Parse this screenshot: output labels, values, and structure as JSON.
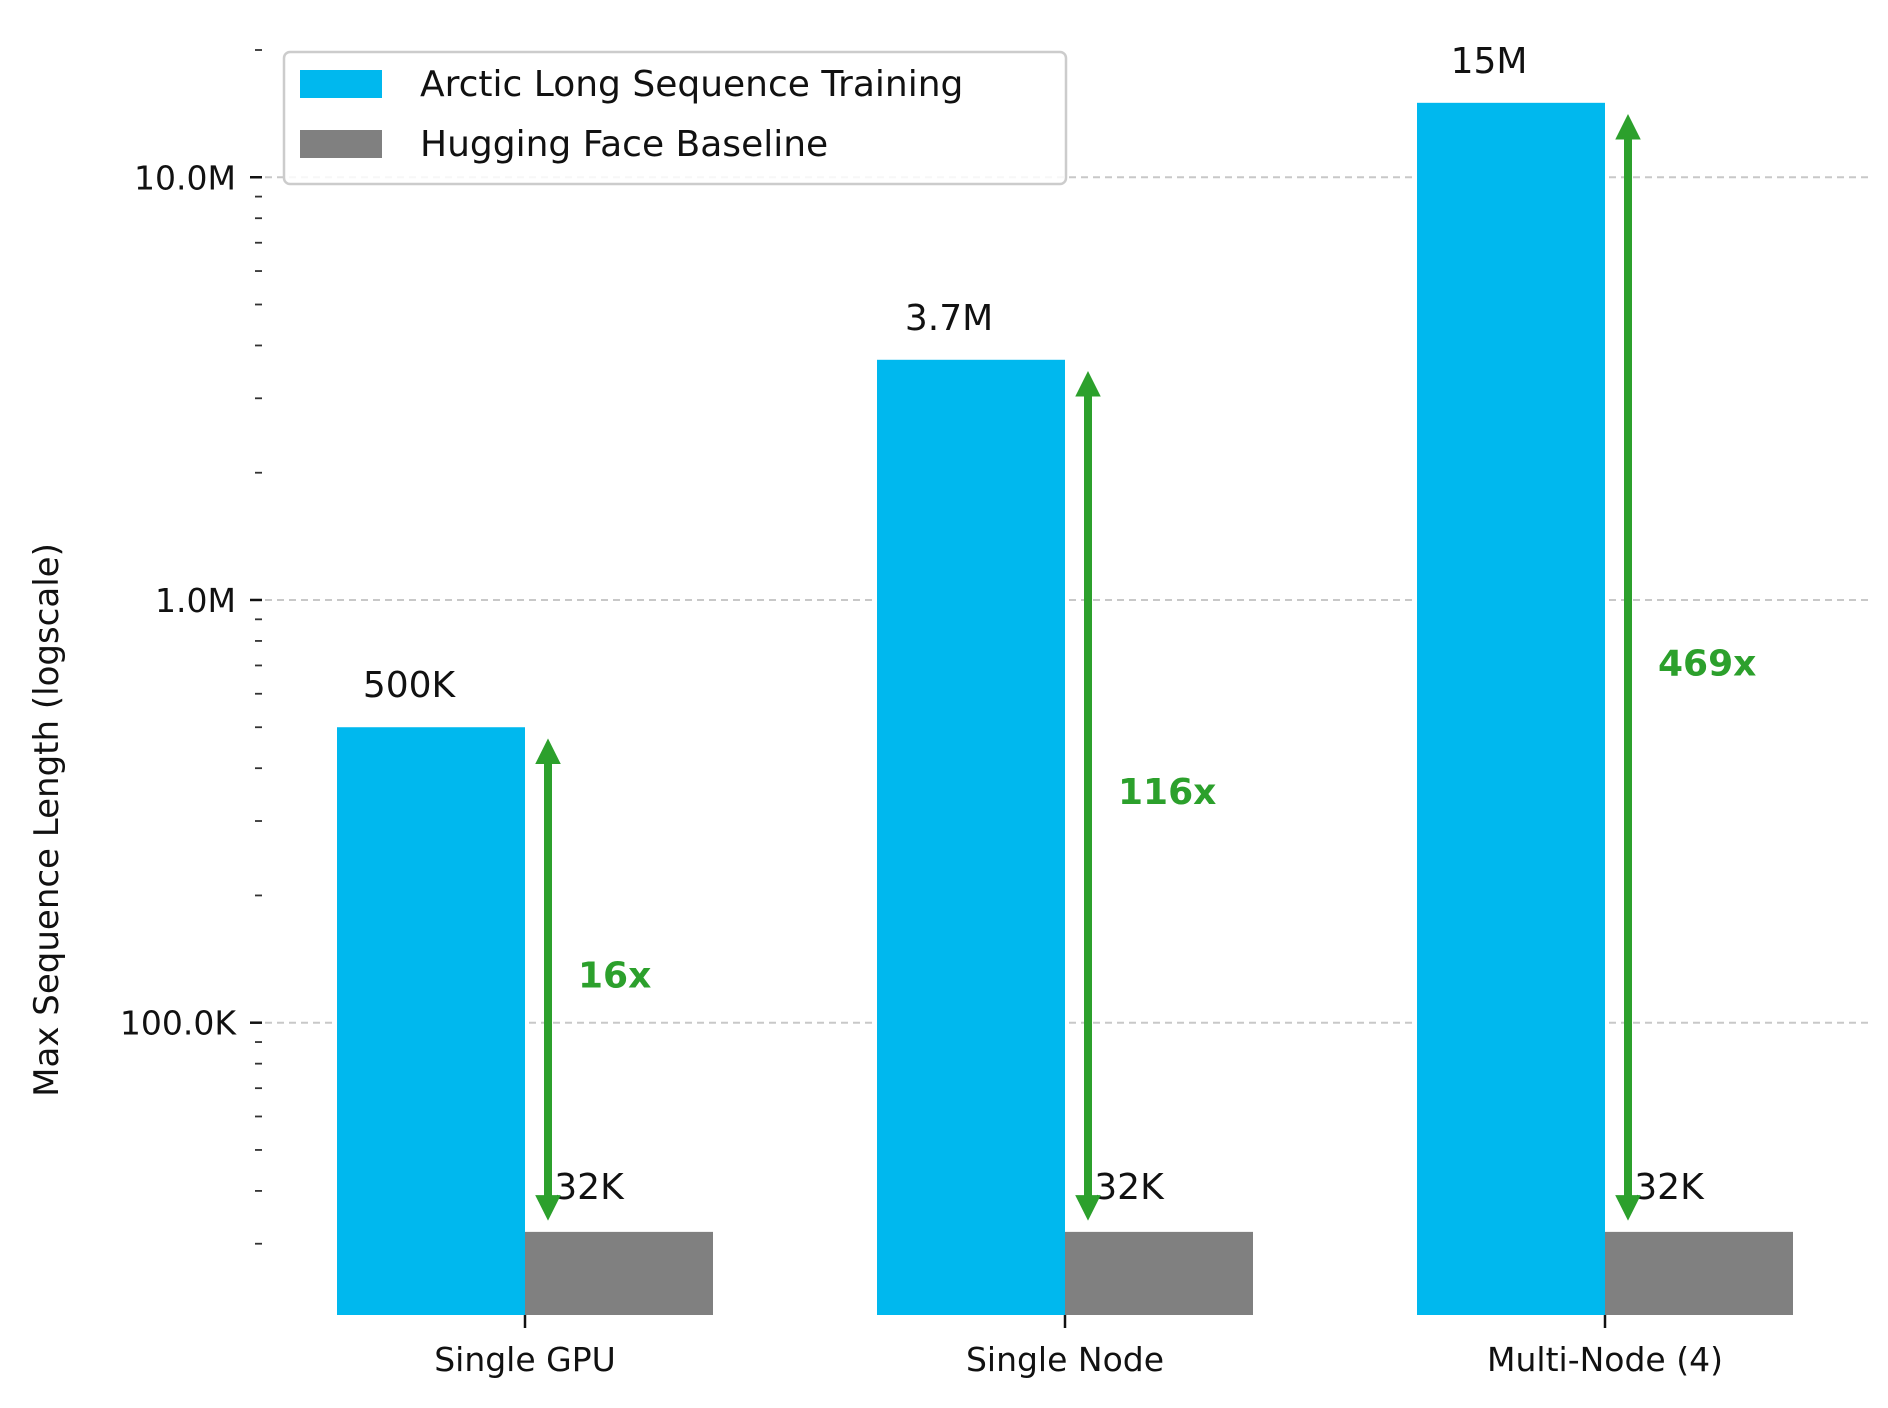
{
  "chart_data": {
    "type": "bar",
    "title": "",
    "xlabel": "",
    "ylabel": "Max Sequence Length (logscale)",
    "yscale": "log",
    "ylim": [
      26000,
      20000000
    ],
    "grid": "y-major-dashed",
    "legend_position": "top-left",
    "categories": [
      "Single GPU",
      "Single Node",
      "Multi-Node (4)"
    ],
    "y_ticks": [
      {
        "value": 100000,
        "label": "100.0K"
      },
      {
        "value": 1000000,
        "label": "1.0M"
      },
      {
        "value": 10000000,
        "label": "10.0M"
      }
    ],
    "series": [
      {
        "name": "Arctic Long Sequence Training",
        "color": "#00b8ee",
        "values": [
          500000,
          3700000,
          15000000
        ],
        "labels": [
          "500K",
          "3.7M",
          "15M"
        ]
      },
      {
        "name": "Hugging Face Baseline",
        "color": "#808080",
        "values": [
          32000,
          32000,
          32000
        ],
        "labels": [
          "32K",
          "32K",
          "32K"
        ]
      }
    ],
    "annotations": {
      "color": "#2ca02c",
      "ratios": [
        "16x",
        "116x",
        "469x"
      ]
    }
  }
}
